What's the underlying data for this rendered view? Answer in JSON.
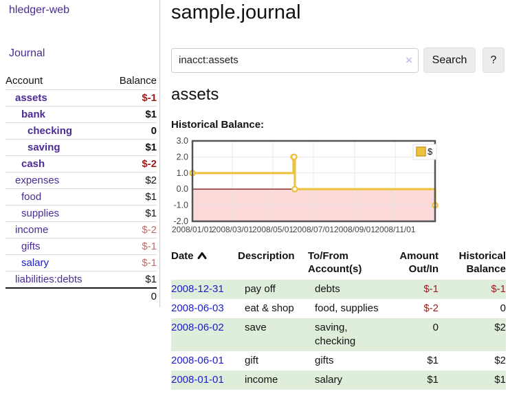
{
  "app": {
    "brand": "hledger-web"
  },
  "sidebar": {
    "journal_label": "Journal",
    "accounts": {
      "header_account": "Account",
      "header_balance": "Balance",
      "rows": [
        {
          "name": "assets",
          "indent": 1,
          "bold": true,
          "balance": "$-1",
          "balance_style": "neg-strong"
        },
        {
          "name": "bank",
          "indent": 2,
          "bold": true,
          "balance": "$1",
          "balance_style": "pos"
        },
        {
          "name": "checking",
          "indent": 3,
          "bold": true,
          "balance": "0",
          "balance_style": "pos"
        },
        {
          "name": "saving",
          "indent": 3,
          "bold": true,
          "balance": "$1",
          "balance_style": "pos"
        },
        {
          "name": "cash",
          "indent": 2,
          "bold": true,
          "balance": "$-2",
          "balance_style": "neg-strong"
        },
        {
          "name": "expenses",
          "indent": 1,
          "bold": false,
          "balance": "$2",
          "balance_style": "pos"
        },
        {
          "name": "food",
          "indent": 2,
          "bold": false,
          "balance": "$1",
          "balance_style": "pos"
        },
        {
          "name": "supplies",
          "indent": 2,
          "bold": false,
          "balance": "$1",
          "balance_style": "pos"
        },
        {
          "name": "income",
          "indent": 1,
          "bold": false,
          "balance": "$-2",
          "balance_style": "neg-muted"
        },
        {
          "name": "gifts",
          "indent": 2,
          "bold": false,
          "balance": "$-1",
          "balance_style": "neg-muted"
        },
        {
          "name": "salary",
          "indent": 2,
          "bold": false,
          "balance": "$-1",
          "balance_style": "neg-muted",
          "link_color": "blue"
        },
        {
          "name": "liabilities:debts",
          "indent": 1,
          "bold": false,
          "balance": "$1",
          "balance_style": "pos"
        }
      ],
      "total": "0"
    }
  },
  "main": {
    "title": "sample.journal",
    "search": {
      "value": "inacct:assets",
      "clear_icon": "×",
      "button_label": "Search",
      "help_label": "?"
    },
    "account_heading": "assets",
    "chart_label": "Historical Balance:"
  },
  "chart_data": {
    "type": "line",
    "title": "Historical Balance:",
    "step": true,
    "series": [
      {
        "name": "$",
        "color": "#edc240",
        "points": [
          [
            "2008-01-01",
            1
          ],
          [
            "2008-06-01",
            2
          ],
          [
            "2008-06-02",
            2
          ],
          [
            "2008-06-03",
            0
          ],
          [
            "2008-12-31",
            -1
          ]
        ]
      }
    ],
    "xrange": [
      "2008-01-01",
      "2008-12-31"
    ],
    "ylim": [
      -2,
      3
    ],
    "ytick_labels": [
      "3.0",
      "2.0",
      "1.0",
      "0.0",
      "-1.0",
      "-2.0"
    ],
    "xtick_labels": [
      "2008/01/01",
      "2008/03/01",
      "2008/05/01",
      "2008/07/01",
      "2008/09/01",
      "2008/11/01"
    ],
    "grid": true,
    "legend_position": "top-right",
    "legend": [
      {
        "label": "$",
        "color": "#edc240"
      }
    ],
    "negative_region_fill": "#fbd9d9",
    "zero_line_color": "#8b1a1a",
    "border_color": "#545454",
    "grid_color": "#e5e5e5"
  },
  "register": {
    "headers": [
      {
        "label": "Date",
        "sorted": "asc"
      },
      {
        "label": "Description"
      },
      {
        "label": "To/From Account(s)"
      },
      {
        "label": "Amount Out/In",
        "align": "right"
      },
      {
        "label": "Historical Balance",
        "align": "right"
      }
    ],
    "rows": [
      {
        "date": "2008-12-31",
        "description": "pay off",
        "accounts": "debts",
        "amount": "$-1",
        "amount_neg": true,
        "balance": "$-1",
        "balance_neg": true
      },
      {
        "date": "2008-06-03",
        "description": "eat & shop",
        "accounts": "food, supplies",
        "amount": "$-2",
        "amount_neg": true,
        "balance": "0",
        "balance_neg": false
      },
      {
        "date": "2008-06-02",
        "description": "save",
        "accounts": "saving, checking",
        "amount": "0",
        "amount_neg": false,
        "balance": "$2",
        "balance_neg": false
      },
      {
        "date": "2008-06-01",
        "description": "gift",
        "accounts": "gifts",
        "amount": "$1",
        "amount_neg": false,
        "balance": "$2",
        "balance_neg": false
      },
      {
        "date": "2008-01-01",
        "description": "income",
        "accounts": "salary",
        "amount": "$1",
        "amount_neg": false,
        "balance": "$1",
        "balance_neg": false
      }
    ]
  }
}
